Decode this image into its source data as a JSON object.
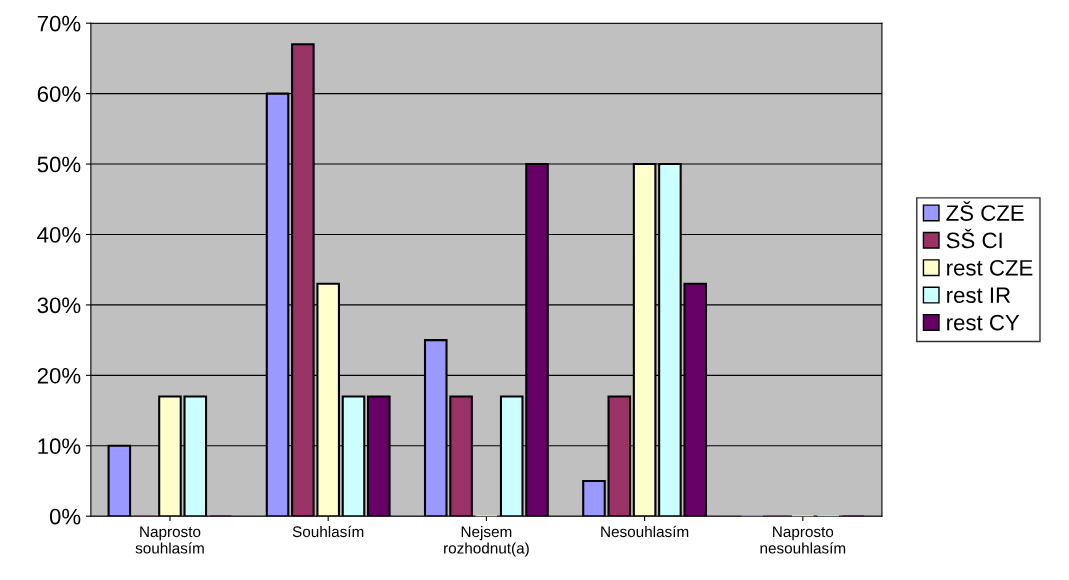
{
  "chart_data": {
    "type": "bar",
    "categories": [
      "Naprosto\nsouhlasím",
      "Souhlasím",
      "Nejsem\nrozhodnut(a)",
      "Nesouhlasím",
      "Naprosto\nnesouhlasím"
    ],
    "series": [
      {
        "name": "ZŠ CZE",
        "color": "#9999ff",
        "values": [
          10,
          60,
          25,
          5,
          0
        ]
      },
      {
        "name": "SŠ CI",
        "color": "#993366",
        "values": [
          0,
          67,
          17,
          17,
          0
        ]
      },
      {
        "name": "rest CZE",
        "color": "#ffffcc",
        "values": [
          17,
          33,
          0,
          50,
          0
        ]
      },
      {
        "name": "rest IR",
        "color": "#ccffff",
        "values": [
          17,
          17,
          17,
          50,
          0
        ]
      },
      {
        "name": "rest CY",
        "color": "#660066",
        "values": [
          0,
          17,
          50,
          33,
          0
        ]
      }
    ],
    "ylim": [
      0,
      70
    ],
    "yticks": [
      {
        "value": 0,
        "label": "0%"
      },
      {
        "value": 10,
        "label": "10%"
      },
      {
        "value": 20,
        "label": "20%"
      },
      {
        "value": 30,
        "label": "30%"
      },
      {
        "value": 40,
        "label": "40%"
      },
      {
        "value": 50,
        "label": "50%"
      },
      {
        "value": 60,
        "label": "60%"
      },
      {
        "value": 70,
        "label": "70%"
      }
    ],
    "grid": "y",
    "legend": "right"
  }
}
